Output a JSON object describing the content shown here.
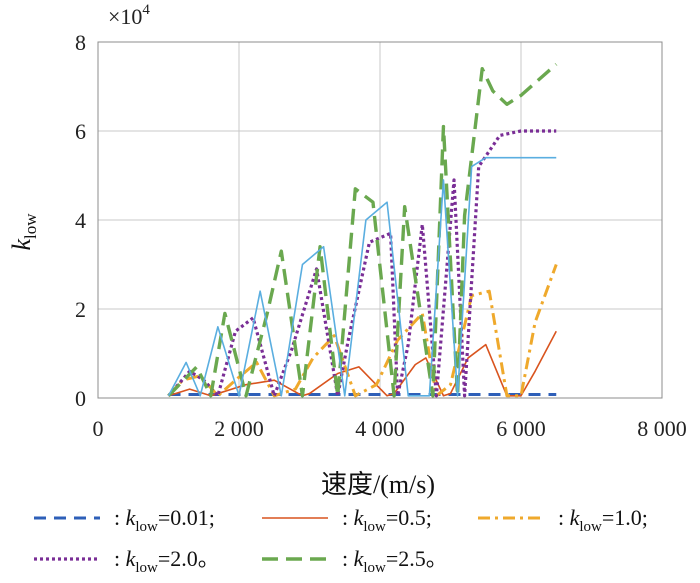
{
  "chart_data": {
    "type": "line",
    "title": "",
    "xlabel": "速度/(m/s)",
    "ylabel": {
      "main": "k",
      "sub": "low"
    },
    "y_multiplier": "×10",
    "y_multiplier_exp": "4",
    "xlim": [
      0,
      8000
    ],
    "ylim": [
      0,
      8
    ],
    "xticks": [
      0,
      2000,
      4000,
      6000,
      8000
    ],
    "xtick_labels": [
      "0",
      "2 000",
      "4 000",
      "6 000",
      "8 000"
    ],
    "yticks": [
      0,
      2,
      4,
      6,
      8
    ],
    "ytick_labels": [
      "0",
      "2",
      "4",
      "6",
      "8"
    ],
    "grid": true,
    "legend_position": "bottom",
    "series": [
      {
        "name": "klow=0.01",
        "legend": {
          "prefix": ": ",
          "k": "k",
          "sub": "low",
          "suffix": "=0.01;"
        },
        "color": "#2e5fb8",
        "dash": "12,8",
        "width": 3,
        "x": [
          1000,
          6500
        ],
        "y": [
          0.08,
          0.08
        ]
      },
      {
        "name": "klow=0.5",
        "legend": {
          "prefix": ": ",
          "k": "k",
          "sub": "low",
          "suffix": "=0.5;"
        },
        "color": "#d9541e",
        "dash": "",
        "width": 1.6,
        "x": [
          1000,
          1300,
          1600,
          1700,
          2100,
          2500,
          2900,
          3000,
          3400,
          3700,
          4100,
          4200,
          4500,
          4650,
          4900,
          5000,
          5250,
          5500,
          5800,
          6000,
          6200,
          6500
        ],
        "y": [
          0.05,
          0.2,
          0.05,
          0.1,
          0.3,
          0.4,
          0.05,
          0.1,
          0.55,
          0.7,
          0.05,
          0.1,
          0.75,
          0.9,
          0.05,
          0.1,
          0.9,
          1.2,
          0.05,
          0.05,
          0.6,
          1.5
        ]
      },
      {
        "name": "klow=1.0",
        "legend": {
          "prefix": ": ",
          "k": "k",
          "sub": "low",
          "suffix": "=1.0;"
        },
        "color": "#efa92c",
        "dash": "12,5,3,5",
        "width": 3,
        "x": [
          1000,
          1200,
          1450,
          1700,
          1950,
          2250,
          2500,
          2800,
          3050,
          3350,
          3650,
          3950,
          4250,
          4600,
          4800,
          5000,
          5300,
          5550,
          5800,
          6000,
          6200,
          6500
        ],
        "y": [
          0.05,
          0.4,
          0.5,
          0.05,
          0.4,
          0.8,
          0.05,
          0.2,
          0.9,
          1.4,
          0.05,
          0.3,
          1.3,
          1.9,
          0.05,
          0.3,
          2.3,
          2.4,
          0.05,
          0.05,
          1.7,
          3.0
        ]
      },
      {
        "name": "klow=2.0",
        "legend": {
          "prefix": ": ",
          "k": "k",
          "sub": "low",
          "suffix": "=2.0。"
        },
        "color": "#7a2e96",
        "dash": "3,3",
        "width": 3.2,
        "x": [
          1000,
          1300,
          1500,
          1700,
          1950,
          2200,
          2500,
          2750,
          3100,
          3400,
          3550,
          3850,
          4150,
          4250,
          4400,
          4600,
          4800,
          5050,
          5200,
          5400,
          5700,
          6000,
          6500
        ],
        "y": [
          0.05,
          0.6,
          0.4,
          0.05,
          1.5,
          1.8,
          0.05,
          1.1,
          2.9,
          0.05,
          1.3,
          3.5,
          3.7,
          0.05,
          1.2,
          3.9,
          0.05,
          4.9,
          0.05,
          5.2,
          5.9,
          6.0,
          6.0
        ]
      },
      {
        "name": "klow=2.5",
        "legend": {
          "prefix": ": ",
          "k": "k",
          "sub": "low",
          "suffix": "=2.5。"
        },
        "color": "#6aa84f",
        "dash": "16,8",
        "width": 3.4,
        "x": [
          1000,
          1400,
          1600,
          1800,
          2100,
          2400,
          2600,
          2900,
          3150,
          3400,
          3650,
          3900,
          4200,
          4350,
          4750,
          4900,
          5100,
          5200,
          5450,
          5600,
          5800,
          6000,
          6500
        ],
        "y": [
          0.05,
          0.7,
          0.05,
          1.9,
          0.05,
          1.9,
          3.3,
          0.05,
          3.4,
          0.05,
          4.7,
          4.4,
          0.05,
          4.3,
          0.05,
          6.1,
          0.05,
          4.1,
          7.4,
          6.9,
          6.6,
          6.8,
          7.5
        ]
      },
      {
        "name": "unlabeled-light-blue",
        "color": "#5aaee0",
        "dash": "",
        "width": 1.6,
        "x": [
          1000,
          1250,
          1450,
          1700,
          2000,
          2300,
          2600,
          2900,
          3200,
          3500,
          3800,
          4100,
          4400,
          4700,
          4900,
          5100,
          5300,
          5500,
          5800,
          6100,
          6500
        ],
        "y": [
          0.05,
          0.8,
          0.05,
          1.6,
          0.05,
          2.4,
          0.05,
          3.0,
          3.4,
          0.05,
          4.0,
          4.4,
          0.05,
          0.05,
          4.9,
          0.05,
          5.2,
          5.4,
          5.4,
          5.4,
          5.4
        ]
      }
    ]
  }
}
